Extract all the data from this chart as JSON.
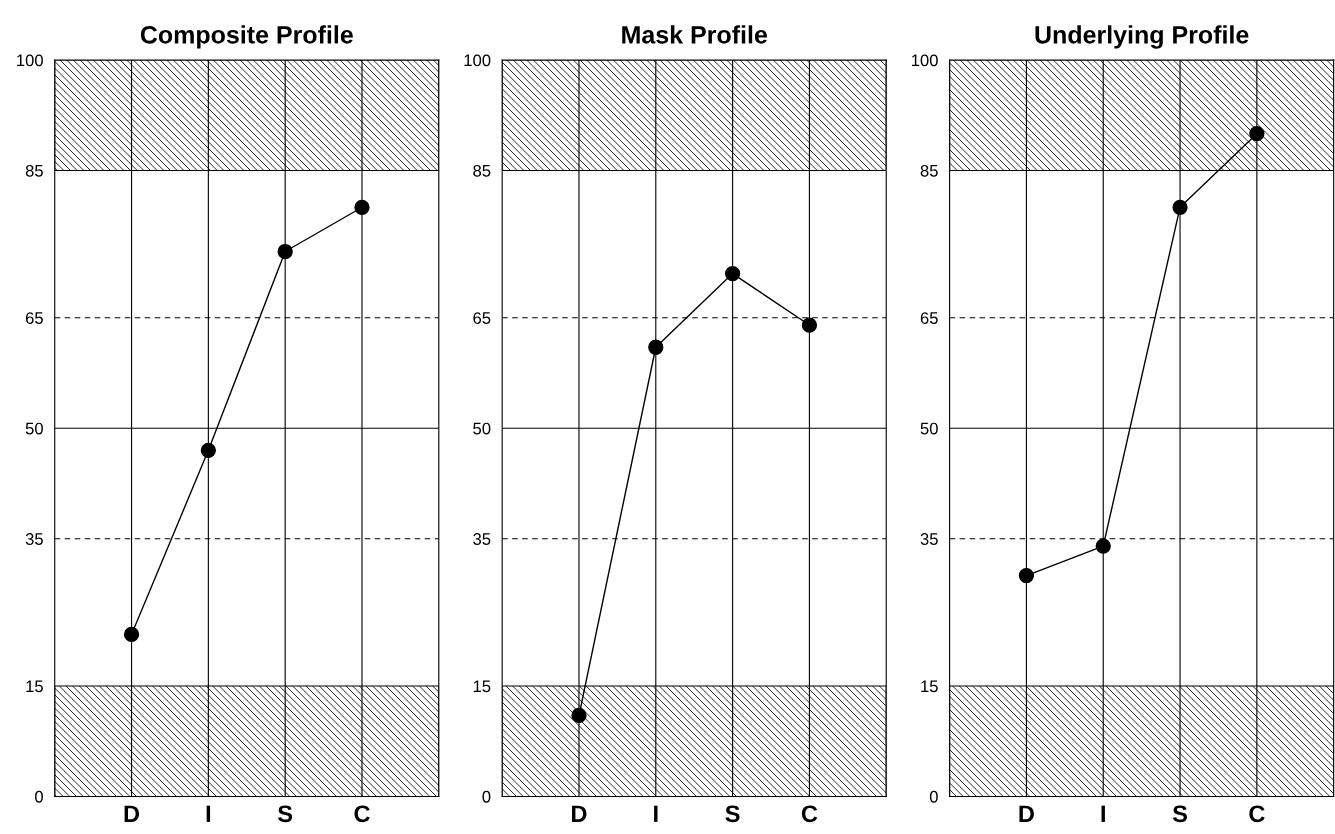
{
  "chart_data": [
    {
      "type": "line",
      "title": "Composite Profile",
      "categories": [
        "D",
        "I",
        "S",
        "C"
      ],
      "series": [
        {
          "color": "#000000",
          "values": [
            22,
            47,
            74,
            80
          ]
        }
      ],
      "ylim": [
        0,
        100
      ],
      "yticks": [
        0,
        15,
        35,
        50,
        65,
        85,
        100
      ],
      "grid": "x",
      "marker": "circle",
      "line_style": "solid",
      "ref_lines": [
        {
          "axis": "y",
          "value": 35,
          "line_style": "dashed",
          "color": "#000000"
        },
        {
          "axis": "y",
          "value": 50,
          "line_style": "solid",
          "color": "#000000"
        },
        {
          "axis": "y",
          "value": 65,
          "line_style": "dashed",
          "color": "#000000"
        }
      ],
      "bands": [
        {
          "axis": "y",
          "from": 0,
          "to": 15,
          "color": "#000000"
        },
        {
          "axis": "y",
          "from": 85,
          "to": 100,
          "color": "#000000"
        }
      ]
    },
    {
      "type": "line",
      "title": "Mask Profile",
      "categories": [
        "D",
        "I",
        "S",
        "C"
      ],
      "series": [
        {
          "color": "#000000",
          "values": [
            11,
            61,
            71,
            64
          ]
        }
      ],
      "ylim": [
        0,
        100
      ],
      "yticks": [
        0,
        15,
        35,
        50,
        65,
        85,
        100
      ],
      "grid": "x",
      "marker": "circle",
      "line_style": "solid",
      "ref_lines": [
        {
          "axis": "y",
          "value": 35,
          "line_style": "dashed",
          "color": "#000000"
        },
        {
          "axis": "y",
          "value": 50,
          "line_style": "solid",
          "color": "#000000"
        },
        {
          "axis": "y",
          "value": 65,
          "line_style": "dashed",
          "color": "#000000"
        }
      ],
      "bands": [
        {
          "axis": "y",
          "from": 0,
          "to": 15,
          "color": "#000000"
        },
        {
          "axis": "y",
          "from": 85,
          "to": 100,
          "color": "#000000"
        }
      ]
    },
    {
      "type": "line",
      "title": "Underlying Profile",
      "categories": [
        "D",
        "I",
        "S",
        "C"
      ],
      "series": [
        {
          "color": "#000000",
          "values": [
            30,
            34,
            80,
            90
          ]
        }
      ],
      "ylim": [
        0,
        100
      ],
      "yticks": [
        0,
        15,
        35,
        50,
        65,
        85,
        100
      ],
      "grid": "x",
      "marker": "circle",
      "line_style": "solid",
      "ref_lines": [
        {
          "axis": "y",
          "value": 35,
          "line_style": "dashed",
          "color": "#000000"
        },
        {
          "axis": "y",
          "value": 50,
          "line_style": "solid",
          "color": "#000000"
        },
        {
          "axis": "y",
          "value": 65,
          "line_style": "dashed",
          "color": "#000000"
        }
      ],
      "bands": [
        {
          "axis": "y",
          "from": 0,
          "to": 15,
          "color": "#000000"
        },
        {
          "axis": "y",
          "from": 85,
          "to": 100,
          "color": "#000000"
        }
      ]
    }
  ]
}
